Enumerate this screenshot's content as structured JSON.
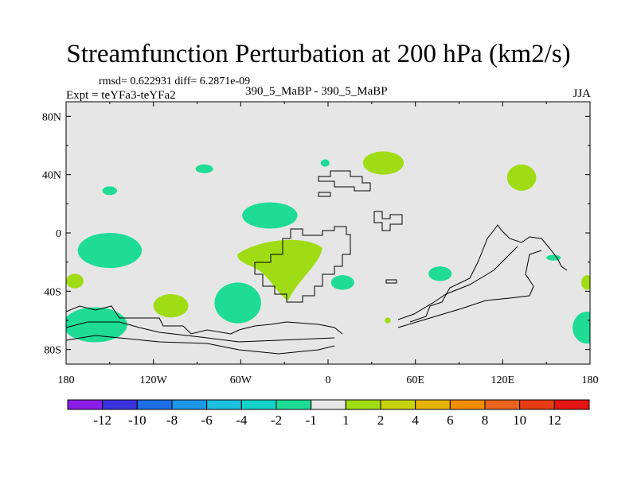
{
  "chart_data": {
    "type": "heatmap",
    "title": "Streamfunction Perturbation at 200 hPa (km2/s)",
    "stats": "rmsd= 0.622931 diff= 6.2871e-09",
    "experiment": "Expt = teYFa3-teYFa2",
    "cases": "390_5_MaBP - 390_5_MaBP",
    "season": "JJA",
    "x_range": [
      -180,
      180
    ],
    "y_range": [
      -90,
      90
    ],
    "x_ticks": [
      {
        "value": -180,
        "label": "180"
      },
      {
        "value": -120,
        "label": "120W"
      },
      {
        "value": -60,
        "label": "60W"
      },
      {
        "value": 0,
        "label": "0"
      },
      {
        "value": 60,
        "label": "60E"
      },
      {
        "value": 120,
        "label": "120E"
      },
      {
        "value": 180,
        "label": "180"
      }
    ],
    "y_ticks": [
      {
        "value": 80,
        "label": "80N"
      },
      {
        "value": 40,
        "label": "40N"
      },
      {
        "value": 0,
        "label": "0"
      },
      {
        "value": -40,
        "label": "40S"
      },
      {
        "value": -80,
        "label": "80S"
      }
    ],
    "colorbar": {
      "colors": [
        "#8a1ee6",
        "#3b32e0",
        "#1e6ee6",
        "#1e96e6",
        "#1ebede",
        "#14d2c8",
        "#1edc96",
        "#e6e6e6",
        "#a0dc14",
        "#c8d20a",
        "#e6b400",
        "#f08c00",
        "#eb641e",
        "#e63c14",
        "#e61414"
      ],
      "labels": [
        "-12",
        "-10",
        "-8",
        "-6",
        "-4",
        "-2",
        "-1",
        "1",
        "2",
        "4",
        "6",
        "8",
        "10",
        "12"
      ]
    },
    "background_color": "#e6e6e6",
    "anomalies": [
      {
        "sign": "neg",
        "lon": -150,
        "lat": -12,
        "rlon": 22,
        "rlat": 12
      },
      {
        "sign": "neg",
        "lon": -40,
        "lat": 12,
        "rlon": 19,
        "rlat": 9
      },
      {
        "sign": "neg",
        "lon": -62,
        "lat": -48,
        "rlon": 16,
        "rlat": 14
      },
      {
        "sign": "neg",
        "lon": -160,
        "lat": -63,
        "rlon": 22,
        "rlat": 12
      },
      {
        "sign": "neg",
        "lon": -85,
        "lat": 44,
        "rlon": 6,
        "rlat": 3
      },
      {
        "sign": "neg",
        "lon": -150,
        "lat": 29,
        "rlon": 5,
        "rlat": 3
      },
      {
        "sign": "neg",
        "lon": -2,
        "lat": 48,
        "rlon": 3,
        "rlat": 2.5
      },
      {
        "sign": "neg",
        "lon": 10,
        "lat": -34,
        "rlon": 8,
        "rlat": 5
      },
      {
        "sign": "neg",
        "lon": 77,
        "lat": -28,
        "rlon": 8,
        "rlat": 5
      },
      {
        "sign": "neg",
        "lon": 155,
        "lat": -17,
        "rlon": 5,
        "rlat": 2
      },
      {
        "sign": "neg",
        "lon": 178,
        "lat": -65,
        "rlon": 10,
        "rlat": 11
      },
      {
        "sign": "pos",
        "lon": 38,
        "lat": 48,
        "rlon": 14,
        "rlat": 8
      },
      {
        "sign": "pos",
        "lon": 133,
        "lat": 38,
        "rlon": 10,
        "rlat": 9
      },
      {
        "sign": "pos",
        "lon": -108,
        "lat": -50,
        "rlon": 12,
        "rlat": 8
      },
      {
        "sign": "pos",
        "lon": -174,
        "lat": -33,
        "rlon": 6,
        "rlat": 5
      },
      {
        "sign": "pos",
        "lon": 178,
        "lat": -34,
        "rlon": 4,
        "rlat": 5
      },
      {
        "sign": "pos",
        "lon": 41,
        "lat": -60,
        "rlon": 2,
        "rlat": 2
      }
    ]
  }
}
